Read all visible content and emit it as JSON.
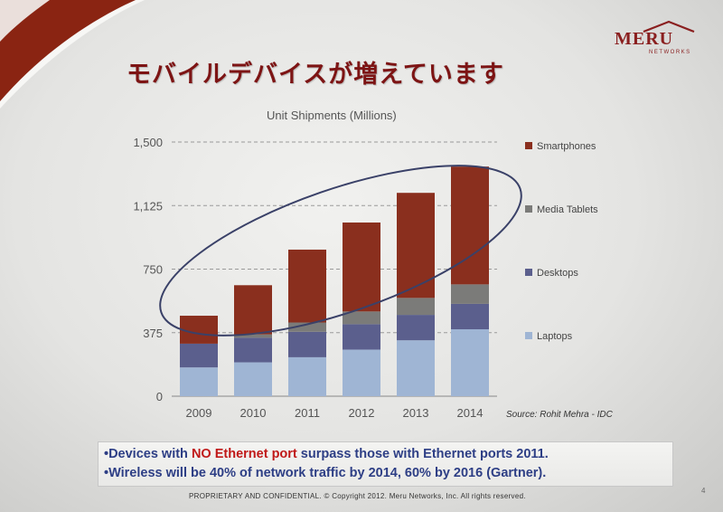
{
  "slide": {
    "title": "モバイルデバイスが増えています",
    "logo_text": "MERU",
    "logo_sub": "NETWORKS",
    "source": "Source: Rohit Mehra - IDC",
    "note1_pre": "•Devices with ",
    "note1_hl": "NO Ethernet port",
    "note1_post": " surpass those with Ethernet ports 2011.",
    "note2": "•Wireless will be 40% of network traffic by 2014, 60% by 2016 (Gartner).",
    "footer": "PROPRIETARY  AND CONFIDENTIAL.  © Copyright 2012. Meru Networks, Inc. All rights reserved.",
    "page_number": "4",
    "colors": {
      "brand": "#8a1f1f",
      "title": "#7d1414",
      "note": "#2d3e85",
      "highlight": "#c01818"
    }
  },
  "chart_data": {
    "type": "bar",
    "stacked": true,
    "title": "Unit Shipments (Millions)",
    "categories": [
      "2009",
      "2010",
      "2011",
      "2012",
      "2013",
      "2014"
    ],
    "ylim": [
      0,
      1500
    ],
    "yticks": [
      0,
      375,
      750,
      1125,
      1500
    ],
    "ytick_labels": [
      "0",
      "375",
      "750",
      "1,125",
      "1,500"
    ],
    "grid": "horizontal dashed",
    "legend_position": "right",
    "annotation": "ellipse around the stacked bars",
    "series": [
      {
        "name": "Laptops",
        "color": "#9fb5d4",
        "values": [
          170,
          200,
          230,
          275,
          330,
          395
        ]
      },
      {
        "name": "Desktops",
        "color": "#5b5f8d",
        "values": [
          140,
          145,
          150,
          150,
          150,
          150
        ]
      },
      {
        "name": "Media Tablets",
        "color": "#7b7b79",
        "values": [
          0,
          20,
          55,
          75,
          100,
          115
        ]
      },
      {
        "name": "Smartphones",
        "color": "#8a2f1e",
        "values": [
          165,
          290,
          430,
          525,
          620,
          695
        ]
      }
    ],
    "legend_order": [
      "Smartphones",
      "Media Tablets",
      "Desktops",
      "Laptops"
    ]
  }
}
